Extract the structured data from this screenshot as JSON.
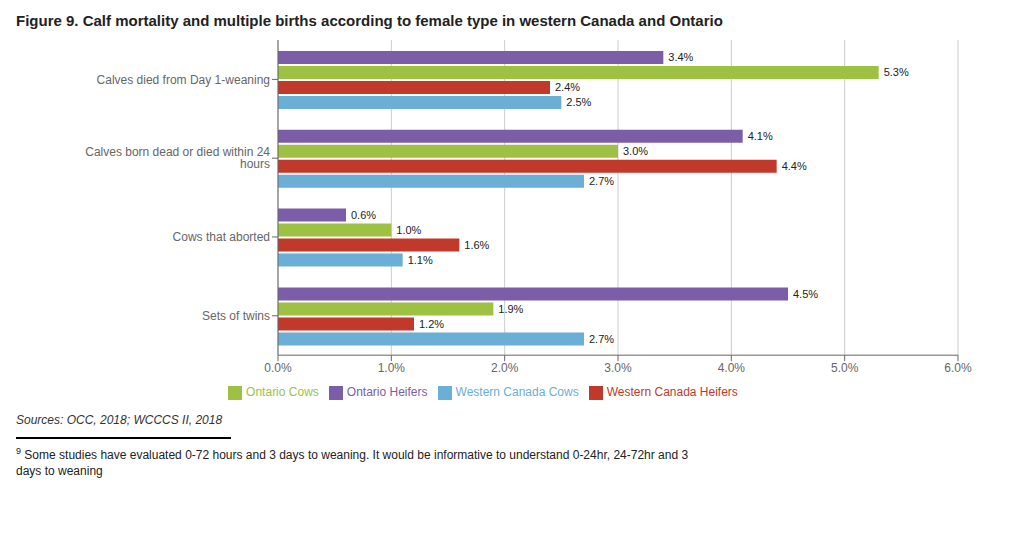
{
  "chart_data": {
    "type": "bar",
    "orientation": "horizontal",
    "title": "Figure 9. Calf mortality and multiple births according to female type in western Canada and Ontario",
    "categories": [
      "Sets of twins",
      "Cows that aborted",
      "Calves born dead or died within 24 hours",
      "Calves died from Day 1-weaning"
    ],
    "series": [
      {
        "name": "Ontario Heifers",
        "color": "#7B5EA7",
        "values": [
          4.5,
          0.6,
          4.1,
          3.4
        ],
        "value_labels": [
          "4.5%",
          "0.6%",
          "4.1%",
          "3.4%"
        ]
      },
      {
        "name": "Ontario Cows",
        "color": "#9DC143",
        "values": [
          1.9,
          1.0,
          3.0,
          5.3
        ],
        "value_labels": [
          "1.9%",
          "1.0%",
          "3.0%",
          "5.3%"
        ]
      },
      {
        "name": "Western Canada Heifers",
        "color": "#C0392B",
        "values": [
          1.2,
          1.6,
          4.4,
          2.4
        ],
        "value_labels": [
          "1.2%",
          "1.6%",
          "4.4%",
          "2.4%"
        ]
      },
      {
        "name": "Western Canada Cows",
        "color": "#6BAED6",
        "values": [
          2.7,
          1.1,
          2.7,
          2.5
        ],
        "value_labels": [
          "2.7%",
          "1.1%",
          "2.7%",
          "2.5%"
        ]
      }
    ],
    "xlim": [
      0,
      6
    ],
    "xticks": [
      {
        "value": 0,
        "label": "0.0%"
      },
      {
        "value": 1,
        "label": "1.0%"
      },
      {
        "value": 2,
        "label": "2.0%"
      },
      {
        "value": 3,
        "label": "3.0%"
      },
      {
        "value": 4,
        "label": "4.0%"
      },
      {
        "value": 5,
        "label": "5.0%"
      },
      {
        "value": 6,
        "label": "6.0%"
      }
    ],
    "grid": true,
    "legend": "bottom",
    "data_labels": true,
    "annotations": [
      "Sources: OCC, 2018; WCCCS II, 2018",
      "9",
      "Some studies have evaluated 0-72 hours and 3 days to weaning. It would be informative to understand 0-24hr, 24-72hr and 3\ndays to weaning"
    ]
  }
}
